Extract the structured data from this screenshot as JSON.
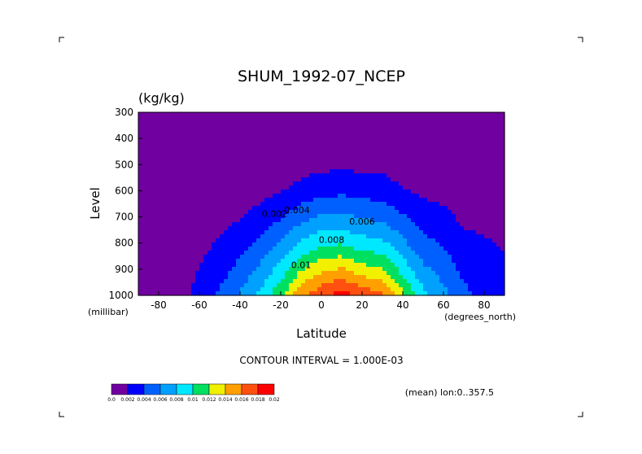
{
  "chart_data": {
    "type": "heatmap",
    "title": "SHUM_1992-07_NCEP",
    "units": "(kg/kg)",
    "xlabel": "Latitude",
    "ylabel": "Level",
    "x_unit_label": "(degrees_north)",
    "y_unit_label": "(millibar)",
    "xlim": [
      -90,
      90
    ],
    "ylim": [
      1000,
      300
    ],
    "x_ticks": [
      "-80",
      "-60",
      "-40",
      "-20",
      "0",
      "20",
      "40",
      "60",
      "80"
    ],
    "y_ticks": [
      "300",
      "400",
      "500",
      "600",
      "700",
      "800",
      "900",
      "1000"
    ],
    "contour_interval_text": "CONTOUR INTERVAL = 1.000E-03",
    "annotation": "(mean) lon:0..357.5",
    "contour_labels": [
      {
        "text": "0.002",
        "lat": -23,
        "lev": 700
      },
      {
        "text": "0.004",
        "lat": -12,
        "lev": 685
      },
      {
        "text": "0.006",
        "lat": 20,
        "lev": 730
      },
      {
        "text": "0.008",
        "lat": 5,
        "lev": 800
      },
      {
        "text": "0.01",
        "lat": -10,
        "lev": 895
      }
    ],
    "colorbar": {
      "levels": [
        "0.0",
        "0.002",
        "0.004",
        "0.006",
        "0.008",
        "0.01",
        "0.012",
        "0.014",
        "0.016",
        "0.018",
        "0.02"
      ],
      "colors": [
        "#7000a0",
        "#0000ff",
        "#0060ff",
        "#00a0ff",
        "#00e8ff",
        "#00e060",
        "#f0f000",
        "#ffa000",
        "#ff5010",
        "#ff0000"
      ]
    },
    "humidity_field": [
      {
        "lat": -90,
        "lev": [
          0.0003,
          0.00025,
          0.0002,
          0.00015,
          0.0001,
          6e-05,
          4e-05,
          2e-05
        ]
      },
      {
        "lat": -80,
        "lev": [
          0.0005,
          0.0004,
          0.0003,
          0.0002,
          0.00015,
          0.0001,
          6e-05,
          3e-05
        ]
      },
      {
        "lat": -70,
        "lev": [
          0.0012,
          0.0008,
          0.0005,
          0.0003,
          0.0002,
          0.00012,
          7e-05,
          3e-05
        ]
      },
      {
        "lat": -60,
        "lev": [
          0.0028,
          0.0021,
          0.0014,
          0.0008,
          0.0004,
          0.00018,
          0.0001,
          4e-05
        ]
      },
      {
        "lat": -50,
        "lev": [
          0.0043,
          0.0032,
          0.0022,
          0.0013,
          0.0006,
          0.00025,
          0.00012,
          5e-05
        ]
      },
      {
        "lat": -40,
        "lev": [
          0.0062,
          0.0046,
          0.0032,
          0.0019,
          0.0009,
          0.0004,
          0.00015,
          6e-05
        ]
      },
      {
        "lat": -30,
        "lev": [
          0.0085,
          0.0064,
          0.0045,
          0.0027,
          0.0013,
          0.0006,
          0.0002,
          7e-05
        ]
      },
      {
        "lat": -20,
        "lev": [
          0.0115,
          0.0088,
          0.0062,
          0.0038,
          0.0019,
          0.0009,
          0.0003,
          8e-05
        ]
      },
      {
        "lat": -10,
        "lev": [
          0.0155,
          0.0118,
          0.0083,
          0.0052,
          0.0027,
          0.0012,
          0.0004,
          0.0001
        ]
      },
      {
        "lat": 0,
        "lev": [
          0.0175,
          0.0135,
          0.0095,
          0.0062,
          0.0033,
          0.0015,
          0.0005,
          0.00012
        ]
      },
      {
        "lat": 10,
        "lev": [
          0.019,
          0.0142,
          0.0098,
          0.0064,
          0.0035,
          0.0016,
          0.0006,
          0.00015
        ]
      },
      {
        "lat": 20,
        "lev": [
          0.0175,
          0.0128,
          0.0088,
          0.0058,
          0.0032,
          0.0015,
          0.0005,
          0.00012
        ]
      },
      {
        "lat": 30,
        "lev": [
          0.0165,
          0.0122,
          0.0085,
          0.0054,
          0.003,
          0.0014,
          0.0005,
          0.00011
        ]
      },
      {
        "lat": 40,
        "lev": [
          0.0125,
          0.0092,
          0.0064,
          0.0042,
          0.0022,
          0.001,
          0.0004,
          0.0001
        ]
      },
      {
        "lat": 50,
        "lev": [
          0.0085,
          0.0064,
          0.0046,
          0.003,
          0.0016,
          0.0007,
          0.0003,
          8e-05
        ]
      },
      {
        "lat": 60,
        "lev": [
          0.0065,
          0.0052,
          0.0038,
          0.0025,
          0.0013,
          0.0006,
          0.00025,
          7e-05
        ]
      },
      {
        "lat": 70,
        "lev": [
          0.0045,
          0.0035,
          0.0025,
          0.0016,
          0.0009,
          0.0004,
          0.0002,
          6e-05
        ]
      },
      {
        "lat": 80,
        "lev": [
          0.0035,
          0.0028,
          0.0022,
          0.0015,
          0.0008,
          0.0004,
          0.0002,
          5e-05
        ]
      },
      {
        "lat": 90,
        "lev": [
          0.003,
          0.0024,
          0.0018,
          0.0012,
          0.0007,
          0.0003,
          0.00015,
          5e-05
        ]
      }
    ]
  }
}
